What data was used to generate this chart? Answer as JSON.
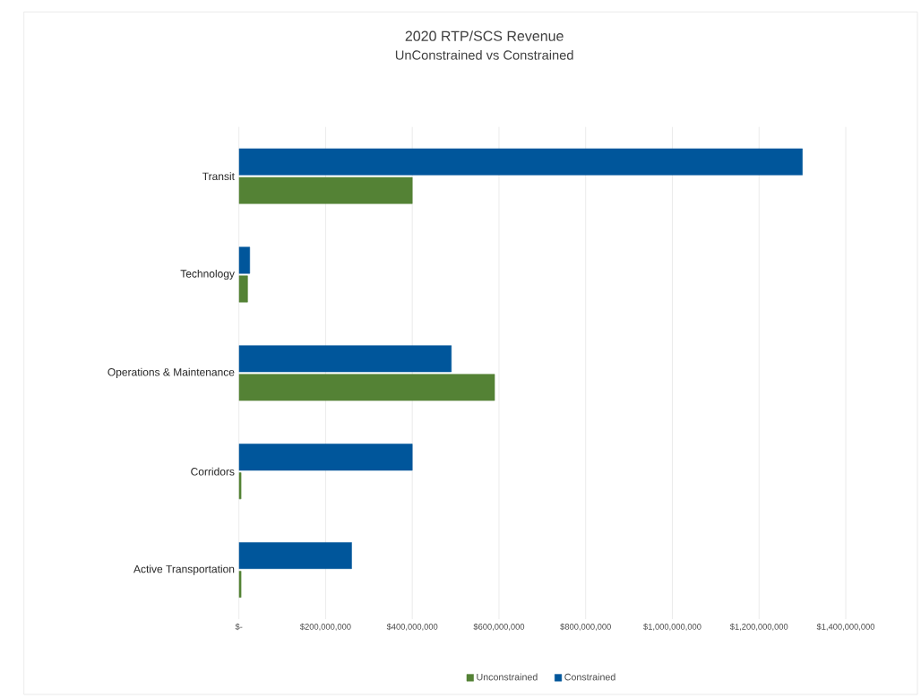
{
  "chart_data": {
    "type": "bar",
    "orientation": "horizontal",
    "title": "2020 RTP/SCS Revenue",
    "subtitle": "UnConstrained vs Constrained",
    "categories": [
      "Transit",
      "Technology",
      "Operations & Maintenance",
      "Corridors",
      "Active Transportation"
    ],
    "series": [
      {
        "name": "Unconstrained",
        "color": "#548235",
        "values": [
          400000000,
          20000000,
          590000000,
          5000000,
          5000000
        ]
      },
      {
        "name": "Constrained",
        "color": "#00569b",
        "values": [
          1300000000,
          25000000,
          490000000,
          400000000,
          260000000
        ]
      }
    ],
    "xlim": [
      0,
      1400000000
    ],
    "xticks": [
      {
        "value": 0,
        "label": "$-"
      },
      {
        "value": 200000000,
        "label": "$200,000,000"
      },
      {
        "value": 400000000,
        "label": "$400,000,000"
      },
      {
        "value": 600000000,
        "label": "$600,000,000"
      },
      {
        "value": 800000000,
        "label": "$800,000,000"
      },
      {
        "value": 1000000000,
        "label": "$1,000,000,000"
      },
      {
        "value": 1200000000,
        "label": "$1,200,000,000"
      },
      {
        "value": 1400000000,
        "label": "$1,400,000,000"
      }
    ],
    "grid": "x",
    "legend": "bottom"
  }
}
